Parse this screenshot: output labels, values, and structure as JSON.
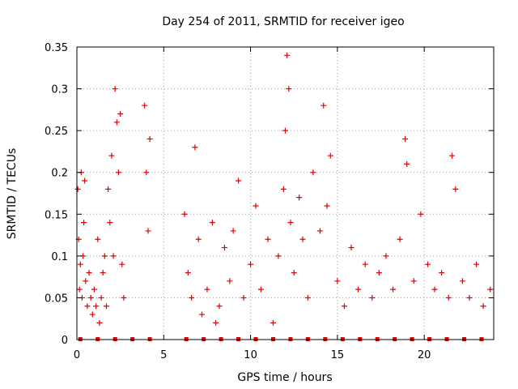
{
  "chart_data": {
    "type": "scatter",
    "title": "Day 254 of 2011, SRMTID for receiver igeo",
    "xlabel": "GPS time / hours",
    "ylabel": "SRMTID / TECUs",
    "xlim": [
      0,
      24
    ],
    "ylim": [
      0,
      0.35
    ],
    "x_ticks": [
      0,
      5,
      10,
      15,
      20
    ],
    "x_tick_labels": [
      "0",
      "5",
      "10",
      "15",
      "20"
    ],
    "y_ticks": [
      0,
      0.05,
      0.1,
      0.15,
      0.2,
      0.25,
      0.3,
      0.35
    ],
    "y_tick_labels": [
      "0",
      "0.05",
      "0.1",
      "0.15",
      "0.2",
      "0.25",
      "0.3",
      "0.35"
    ],
    "grid": true,
    "marker": "plus",
    "color": "#e00000",
    "series": [
      {
        "name": "SRMTID",
        "x": [
          0.05,
          0.1,
          0.15,
          0.2,
          0.25,
          0.3,
          0.35,
          0.4,
          0.45,
          0.5,
          0.6,
          0.7,
          0.8,
          0.9,
          1.0,
          1.1,
          1.2,
          1.3,
          1.4,
          1.5,
          1.6,
          1.7,
          1.8,
          1.9,
          2.0,
          2.1,
          2.2,
          2.3,
          2.4,
          2.5,
          2.6,
          2.7,
          3.9,
          4.0,
          4.1,
          4.2,
          6.2,
          6.4,
          6.6,
          6.8,
          7.0,
          7.2,
          7.5,
          7.8,
          8.0,
          8.2,
          8.5,
          8.8,
          9.0,
          9.3,
          9.6,
          10.0,
          10.3,
          10.6,
          11.0,
          11.3,
          11.6,
          11.9,
          12.0,
          12.1,
          12.2,
          12.3,
          12.5,
          12.8,
          13.0,
          13.3,
          13.6,
          14.0,
          14.2,
          14.4,
          14.6,
          15.0,
          15.4,
          15.8,
          16.2,
          16.6,
          17.0,
          17.4,
          17.8,
          18.2,
          18.6,
          18.9,
          19.0,
          19.4,
          19.8,
          20.2,
          20.6,
          21.0,
          21.4,
          21.6,
          21.8,
          22.2,
          22.6,
          23.0,
          23.4,
          23.8
        ],
        "y": [
          0.18,
          0.12,
          0.06,
          0.09,
          0.2,
          0.05,
          0.1,
          0.14,
          0.19,
          0.07,
          0.04,
          0.08,
          0.05,
          0.03,
          0.06,
          0.04,
          0.12,
          0.02,
          0.05,
          0.08,
          0.1,
          0.04,
          0.18,
          0.14,
          0.22,
          0.1,
          0.3,
          0.26,
          0.2,
          0.27,
          0.09,
          0.05,
          0.28,
          0.2,
          0.13,
          0.24,
          0.15,
          0.08,
          0.05,
          0.23,
          0.12,
          0.03,
          0.06,
          0.14,
          0.02,
          0.04,
          0.11,
          0.07,
          0.13,
          0.19,
          0.05,
          0.09,
          0.16,
          0.06,
          0.12,
          0.02,
          0.1,
          0.18,
          0.25,
          0.34,
          0.3,
          0.14,
          0.08,
          0.17,
          0.12,
          0.05,
          0.2,
          0.13,
          0.28,
          0.16,
          0.22,
          0.07,
          0.04,
          0.11,
          0.06,
          0.09,
          0.05,
          0.08,
          0.1,
          0.06,
          0.12,
          0.24,
          0.21,
          0.07,
          0.15,
          0.09,
          0.06,
          0.08,
          0.05,
          0.22,
          0.18,
          0.07,
          0.05,
          0.09,
          0.04,
          0.06
        ]
      }
    ],
    "baseline_markers": {
      "x": [
        0.2,
        1.2,
        2.2,
        3.2,
        4.2,
        6.3,
        7.3,
        8.3,
        9.3,
        10.3,
        11.3,
        12.3,
        13.3,
        14.3,
        15.3,
        16.3,
        17.3,
        18.3,
        19.3,
        20.3,
        21.3,
        22.3,
        23.3
      ],
      "y": 0
    }
  }
}
